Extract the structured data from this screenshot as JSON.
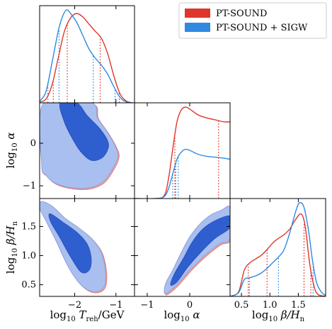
{
  "chart_data": {
    "type": "corner",
    "legend": [
      {
        "label": "PT-SOUND",
        "color": "#e0352b"
      },
      {
        "label": "PT-SOUND + SIGW",
        "color": "#2f8ae0"
      }
    ],
    "parameters": [
      {
        "key": "T",
        "label": "log₁₀ T_reh/GeV",
        "range": [
          -2.85,
          -0.55
        ],
        "ticks": [
          -2,
          -1
        ],
        "tick_labels": [
          "−2",
          "−1"
        ]
      },
      {
        "key": "alpha",
        "label": "log₁₀ α",
        "range": [
          -1.3,
          0.95
        ],
        "ticks": [
          -1,
          0
        ],
        "tick_labels": [
          "−1",
          "0"
        ]
      },
      {
        "key": "beta",
        "label": "log₁₀ β/H_n",
        "range": [
          0.3,
          1.98
        ],
        "ticks": [
          0.5,
          1.0,
          1.5
        ],
        "tick_labels": [
          "0.5",
          "1.0",
          "1.5"
        ]
      }
    ],
    "axis_labels": {
      "T_x": {
        "a": "log",
        "sub": "10",
        "b": " T",
        "sub2": "reh",
        "c": "/GeV"
      },
      "alpha_x": {
        "a": "log",
        "sub": "10",
        "b": " α"
      },
      "beta_x": {
        "a": "log",
        "sub": "10",
        "b": " β/H",
        "sub2": "n"
      },
      "alpha_y": {
        "a": "log",
        "sub": "10",
        "b": " α"
      },
      "beta_y": {
        "a": "log",
        "sub": "10",
        "b": " β/H",
        "sub2": "n"
      }
    },
    "marginals": {
      "T": {
        "PT-SOUND": [
          [
            -2.85,
            0.01
          ],
          [
            -2.7,
            0.04
          ],
          [
            -2.55,
            0.2
          ],
          [
            -2.4,
            0.5
          ],
          [
            -2.25,
            0.8
          ],
          [
            -2.1,
            0.95
          ],
          [
            -1.95,
            1.0
          ],
          [
            -1.8,
            0.96
          ],
          [
            -1.65,
            0.88
          ],
          [
            -1.5,
            0.8
          ],
          [
            -1.35,
            0.72
          ],
          [
            -1.2,
            0.55
          ],
          [
            -1.05,
            0.3
          ],
          [
            -0.9,
            0.1
          ],
          [
            -0.75,
            0.02
          ],
          [
            -0.6,
            0.0
          ]
        ],
        "PT-SOUND + SIGW": [
          [
            -2.85,
            0.02
          ],
          [
            -2.7,
            0.12
          ],
          [
            -2.55,
            0.45
          ],
          [
            -2.4,
            0.8
          ],
          [
            -2.3,
            0.96
          ],
          [
            -2.2,
            1.04
          ],
          [
            -2.1,
            1.0
          ],
          [
            -1.95,
            0.9
          ],
          [
            -1.8,
            0.75
          ],
          [
            -1.65,
            0.6
          ],
          [
            -1.5,
            0.5
          ],
          [
            -1.35,
            0.42
          ],
          [
            -1.2,
            0.32
          ],
          [
            -1.05,
            0.18
          ],
          [
            -0.9,
            0.06
          ],
          [
            -0.75,
            0.01
          ],
          [
            -0.6,
            0.0
          ]
        ],
        "quantile_lines": {
          "PT-SOUND": [
            -2.52,
            -2.18,
            -1.38,
            -0.92
          ],
          "PT-SOUND + SIGW": [
            -2.65,
            -2.38,
            -1.55,
            -1.02
          ]
        }
      },
      "alpha": {
        "PT-SOUND": [
          [
            -1.3,
            0.0
          ],
          [
            -0.8,
            0.0
          ],
          [
            -0.6,
            0.03
          ],
          [
            -0.5,
            0.2
          ],
          [
            -0.4,
            0.5
          ],
          [
            -0.3,
            0.78
          ],
          [
            -0.2,
            0.9
          ],
          [
            -0.1,
            0.93
          ],
          [
            0.0,
            0.91
          ],
          [
            0.2,
            0.85
          ],
          [
            0.4,
            0.82
          ],
          [
            0.6,
            0.8
          ],
          [
            0.8,
            0.78
          ],
          [
            0.95,
            0.78
          ]
        ],
        "PT-SOUND + SIGW": [
          [
            -1.3,
            0.0
          ],
          [
            -0.8,
            0.0
          ],
          [
            -0.6,
            0.02
          ],
          [
            -0.5,
            0.1
          ],
          [
            -0.4,
            0.25
          ],
          [
            -0.3,
            0.4
          ],
          [
            -0.2,
            0.47
          ],
          [
            -0.1,
            0.5
          ],
          [
            0.0,
            0.49
          ],
          [
            0.2,
            0.45
          ],
          [
            0.4,
            0.43
          ],
          [
            0.6,
            0.42
          ],
          [
            0.8,
            0.41
          ],
          [
            0.95,
            0.4
          ]
        ],
        "quantile_lines": {
          "PT-SOUND": [
            -0.35,
            0.68
          ],
          "PT-SOUND + SIGW": [
            -0.4,
            -0.33,
            -0.27
          ]
        }
      },
      "beta": {
        "PT-SOUND": [
          [
            0.3,
            0.0
          ],
          [
            0.45,
            0.05
          ],
          [
            0.55,
            0.28
          ],
          [
            0.65,
            0.36
          ],
          [
            0.75,
            0.4
          ],
          [
            0.85,
            0.44
          ],
          [
            0.95,
            0.5
          ],
          [
            1.05,
            0.57
          ],
          [
            1.15,
            0.62
          ],
          [
            1.25,
            0.66
          ],
          [
            1.35,
            0.72
          ],
          [
            1.45,
            0.82
          ],
          [
            1.55,
            0.88
          ],
          [
            1.62,
            0.75
          ],
          [
            1.7,
            0.35
          ],
          [
            1.78,
            0.1
          ],
          [
            1.85,
            0.02
          ],
          [
            1.98,
            0.0
          ]
        ],
        "PT-SOUND + SIGW": [
          [
            0.3,
            0.0
          ],
          [
            0.45,
            0.04
          ],
          [
            0.55,
            0.18
          ],
          [
            0.65,
            0.2
          ],
          [
            0.75,
            0.22
          ],
          [
            0.85,
            0.25
          ],
          [
            0.95,
            0.3
          ],
          [
            1.05,
            0.36
          ],
          [
            1.15,
            0.42
          ],
          [
            1.25,
            0.5
          ],
          [
            1.35,
            0.68
          ],
          [
            1.45,
            0.9
          ],
          [
            1.52,
            1.0
          ],
          [
            1.6,
            0.95
          ],
          [
            1.68,
            0.7
          ],
          [
            1.75,
            0.38
          ],
          [
            1.82,
            0.15
          ],
          [
            1.9,
            0.05
          ],
          [
            1.98,
            0.01
          ]
        ],
        "quantile_lines": {
          "PT-SOUND": [
            0.62,
            0.95,
            1.6,
            1.72
          ],
          "PT-SOUND + SIGW": [
            0.64,
            1.15,
            1.76
          ]
        }
      }
    },
    "contours_2d": {
      "alpha_vs_T": {
        "outer": [
          [
            -2.75,
            0.95
          ],
          [
            -1.6,
            0.95
          ],
          [
            -1.45,
            0.6
          ],
          [
            -1.2,
            0.25
          ],
          [
            -1.0,
            -0.1
          ],
          [
            -0.95,
            -0.3
          ],
          [
            -1.05,
            -0.55
          ],
          [
            -1.3,
            -0.9
          ],
          [
            -1.65,
            -1.05
          ],
          [
            -2.05,
            -1.05
          ],
          [
            -2.45,
            -0.95
          ],
          [
            -2.7,
            -0.75
          ],
          [
            -2.8,
            -0.5
          ]
        ],
        "inner": [
          [
            -2.35,
            0.95
          ],
          [
            -1.95,
            0.95
          ],
          [
            -1.7,
            0.65
          ],
          [
            -1.4,
            0.35
          ],
          [
            -1.2,
            0.05
          ],
          [
            -1.2,
            -0.15
          ],
          [
            -1.35,
            -0.35
          ],
          [
            -1.6,
            -0.4
          ],
          [
            -1.85,
            -0.2
          ],
          [
            -2.05,
            0.1
          ],
          [
            -2.25,
            0.5
          ]
        ]
      },
      "beta_vs_T": {
        "outer": [
          [
            -2.8,
            1.93
          ],
          [
            -2.55,
            1.85
          ],
          [
            -2.25,
            1.65
          ],
          [
            -1.95,
            1.5
          ],
          [
            -1.6,
            1.3
          ],
          [
            -1.35,
            1.05
          ],
          [
            -1.25,
            0.7
          ],
          [
            -1.3,
            0.45
          ],
          [
            -1.55,
            0.38
          ],
          [
            -1.85,
            0.5
          ],
          [
            -2.15,
            0.8
          ],
          [
            -2.45,
            1.25
          ],
          [
            -2.7,
            1.6
          ],
          [
            -2.85,
            1.82
          ]
        ],
        "inner": [
          [
            -2.6,
            1.72
          ],
          [
            -2.3,
            1.58
          ],
          [
            -1.95,
            1.4
          ],
          [
            -1.7,
            1.2
          ],
          [
            -1.6,
            0.95
          ],
          [
            -1.65,
            0.75
          ],
          [
            -1.85,
            0.72
          ],
          [
            -2.1,
            0.98
          ],
          [
            -2.35,
            1.3
          ],
          [
            -2.58,
            1.58
          ]
        ]
      },
      "beta_vs_alpha": {
        "outer": [
          [
            -0.6,
            0.4
          ],
          [
            -0.55,
            0.35
          ],
          [
            -0.3,
            0.5
          ],
          [
            0.0,
            0.75
          ],
          [
            0.35,
            1.0
          ],
          [
            0.7,
            1.2
          ],
          [
            0.95,
            1.3
          ],
          [
            0.95,
            1.82
          ],
          [
            0.75,
            1.78
          ],
          [
            0.5,
            1.7
          ],
          [
            0.25,
            1.55
          ],
          [
            0.0,
            1.32
          ],
          [
            -0.2,
            1.05
          ],
          [
            -0.4,
            0.75
          ],
          [
            -0.55,
            0.55
          ]
        ],
        "inner": [
          [
            -0.45,
            0.5
          ],
          [
            -0.3,
            0.55
          ],
          [
            -0.05,
            0.8
          ],
          [
            0.25,
            1.05
          ],
          [
            0.6,
            1.3
          ],
          [
            0.95,
            1.48
          ],
          [
            0.95,
            1.68
          ],
          [
            0.6,
            1.6
          ],
          [
            0.3,
            1.45
          ],
          [
            0.05,
            1.22
          ],
          [
            -0.15,
            0.95
          ],
          [
            -0.35,
            0.7
          ]
        ]
      }
    }
  }
}
